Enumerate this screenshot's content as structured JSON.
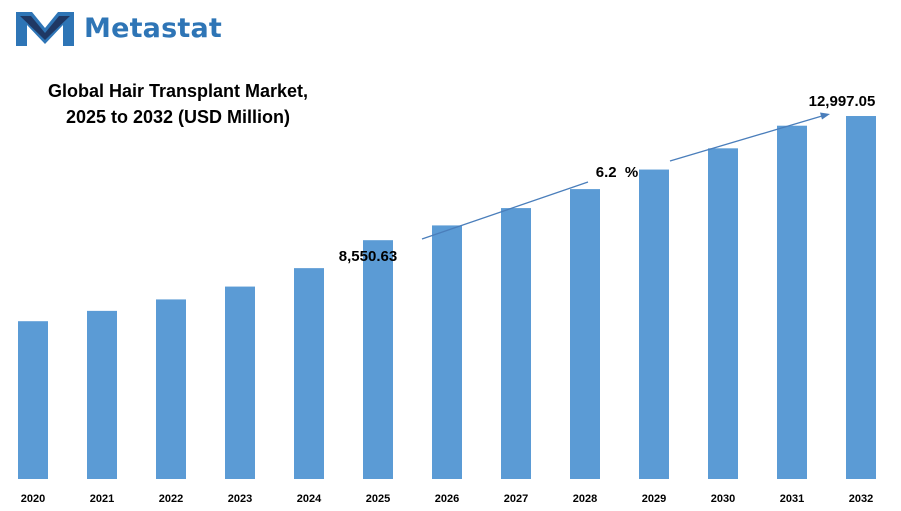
{
  "brand": {
    "name": "Metastat",
    "color": "#2e75b6"
  },
  "chart_data": {
    "type": "bar",
    "title_line1": "Global Hair Transplant Market,",
    "title_line2": "2025 to 2032 (USD Million)",
    "xlabel": "",
    "ylabel": "",
    "grid": false,
    "legend": "none",
    "bar_color": "#5b9bd5",
    "categories": [
      "2020",
      "2021",
      "2022",
      "2023",
      "2024",
      "2025",
      "2026",
      "2027",
      "2028",
      "2029",
      "2030",
      "2031",
      "2032"
    ],
    "values": [
      5650,
      6020,
      6430,
      6890,
      7550,
      8550.63,
      9080,
      9700,
      10380,
      11080,
      11840,
      12650,
      12997.05
    ],
    "ylim": [
      0,
      14000
    ],
    "annotations": {
      "label_2025": "8,550.63",
      "label_2032": "12,997.05",
      "cagr": "6.2  %"
    }
  }
}
